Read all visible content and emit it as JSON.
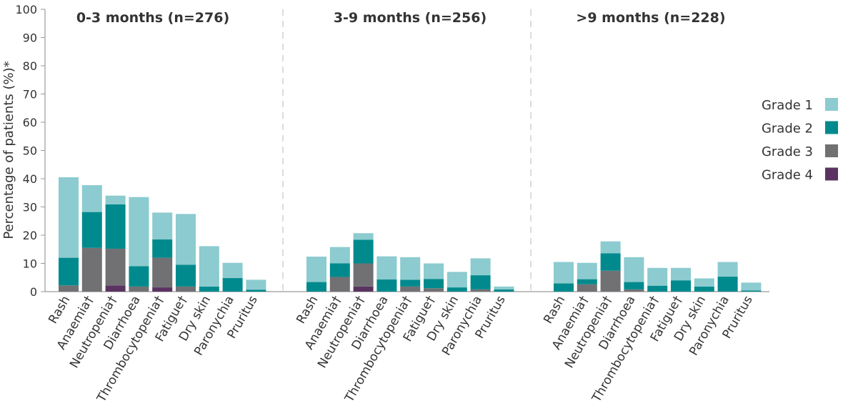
{
  "chart_data": {
    "type": "bar",
    "stacked": true,
    "ylabel": "Percentage of patients (%)*",
    "ylim": [
      0,
      100
    ],
    "yticks": [
      0,
      10,
      20,
      30,
      40,
      50,
      60,
      70,
      80,
      90,
      100
    ],
    "legend": {
      "position": "right",
      "entries": [
        {
          "name": "Grade 1",
          "color": "#8ccbcf"
        },
        {
          "name": "Grade 2",
          "color": "#008a8d"
        },
        {
          "name": "Grade 3",
          "color": "#717174"
        },
        {
          "name": "Grade 4",
          "color": "#5b3361"
        }
      ]
    },
    "categories": [
      "Rash",
      "Anaemia†",
      "Neutropenia†",
      "Diarrhoea",
      "Thrombocytopenia†",
      "Fatigue†",
      "Dry skin",
      "Paronychia",
      "Pruritus"
    ],
    "panels": [
      {
        "title": "0-3 months (n=276)",
        "series": [
          {
            "name": "Grade 4",
            "values": [
              0,
              0,
              2.2,
              0,
              1.5,
              0,
              0,
              0,
              0
            ]
          },
          {
            "name": "Grade 3",
            "values": [
              2.2,
              15.5,
              13.0,
              1.8,
              10.5,
              1.8,
              0,
              0,
              0
            ]
          },
          {
            "name": "Grade 2",
            "values": [
              9.8,
              12.7,
              15.7,
              7.2,
              6.5,
              7.7,
              1.8,
              4.8,
              0.7
            ]
          },
          {
            "name": "Grade 1",
            "values": [
              28.5,
              9.5,
              3.1,
              24.5,
              9.5,
              18.0,
              14.3,
              5.4,
              3.5
            ]
          }
        ]
      },
      {
        "title": "3-9 months (n=256)",
        "series": [
          {
            "name": "Grade 4",
            "values": [
              0,
              0,
              1.8,
              0,
              0,
              0,
              0,
              0,
              0
            ]
          },
          {
            "name": "Grade 3",
            "values": [
              0,
              5.2,
              8.2,
              0,
              1.8,
              1.2,
              0,
              0.8,
              0
            ]
          },
          {
            "name": "Grade 2",
            "values": [
              3.4,
              4.8,
              8.4,
              4.3,
              2.4,
              3.3,
              1.5,
              5.0,
              0.8
            ]
          },
          {
            "name": "Grade 1",
            "values": [
              9.0,
              5.8,
              2.3,
              8.2,
              8.0,
              5.5,
              5.5,
              6.0,
              1.0
            ]
          }
        ]
      },
      {
        "title": ">9 months (n=228)",
        "series": [
          {
            "name": "Grade 4",
            "values": [
              0,
              0,
              0,
              0,
              0,
              0,
              0,
              0,
              0
            ]
          },
          {
            "name": "Grade 3",
            "values": [
              0,
              2.6,
              7.4,
              0.8,
              0,
              0,
              0,
              0,
              0
            ]
          },
          {
            "name": "Grade 2",
            "values": [
              2.9,
              1.8,
              6.2,
              2.6,
              2.1,
              4.0,
              1.8,
              5.3,
              0.4
            ]
          },
          {
            "name": "Grade 1",
            "values": [
              7.6,
              5.8,
              4.2,
              8.8,
              6.3,
              4.4,
              2.9,
              5.2,
              2.8
            ]
          }
        ]
      }
    ]
  }
}
